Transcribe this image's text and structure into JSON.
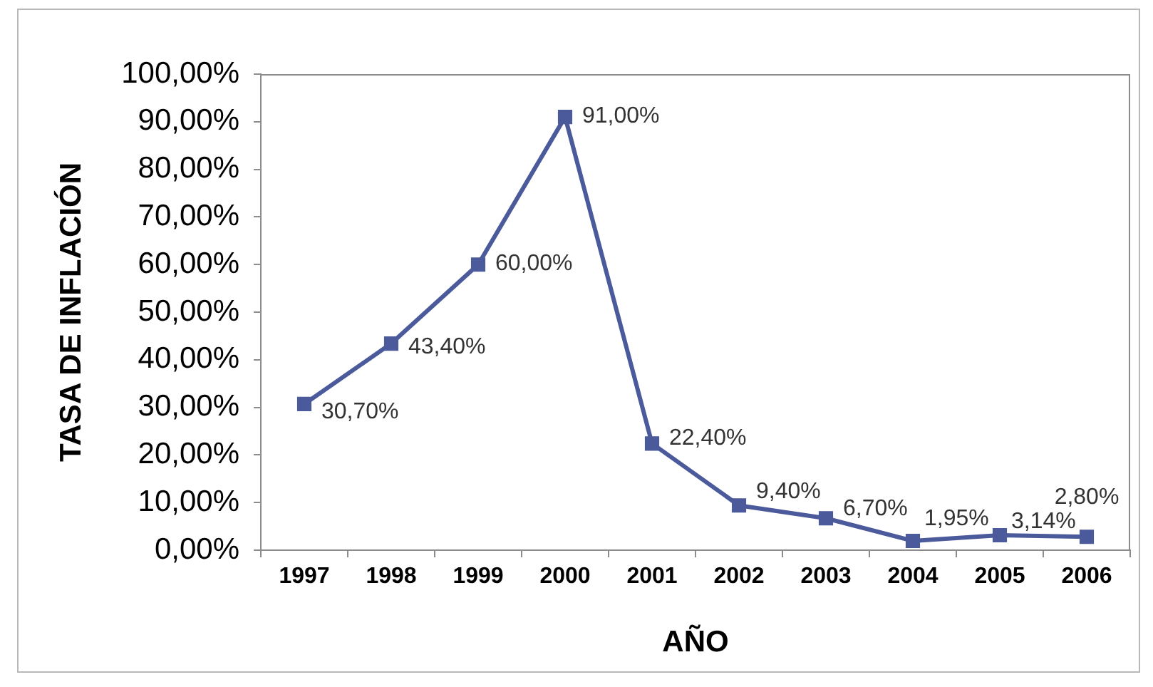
{
  "chart_data": {
    "type": "line",
    "xlabel": "AÑO",
    "ylabel": "TASA DE INFLACIÓN",
    "categories": [
      "1997",
      "1998",
      "1999",
      "2000",
      "2001",
      "2002",
      "2003",
      "2004",
      "2005",
      "2006"
    ],
    "values": [
      30.7,
      43.4,
      60.0,
      91.0,
      22.4,
      9.4,
      6.7,
      1.95,
      3.14,
      2.8
    ],
    "value_labels": [
      "30,70%",
      "43,40%",
      "60,00%",
      "91,00%",
      "22,40%",
      "9,40%",
      "6,70%",
      "1,95%",
      "3,14%",
      "2,80%"
    ],
    "color": "#4b5a9b",
    "ylim": [
      0,
      100
    ],
    "yticks": [
      {
        "value": 0,
        "label": "0,00%"
      },
      {
        "value": 10,
        "label": "10,00%"
      },
      {
        "value": 20,
        "label": "20,00%"
      },
      {
        "value": 30,
        "label": "30,00%"
      },
      {
        "value": 40,
        "label": "40,00%"
      },
      {
        "value": 50,
        "label": "50,00%"
      },
      {
        "value": 60,
        "label": "60,00%"
      },
      {
        "value": 70,
        "label": "70,00%"
      },
      {
        "value": 80,
        "label": "80,00%"
      },
      {
        "value": 90,
        "label": "90,00%"
      },
      {
        "value": 100,
        "label": "100,00%"
      }
    ],
    "grid": false,
    "legend": false,
    "marker": "square",
    "line_style": "solid"
  }
}
